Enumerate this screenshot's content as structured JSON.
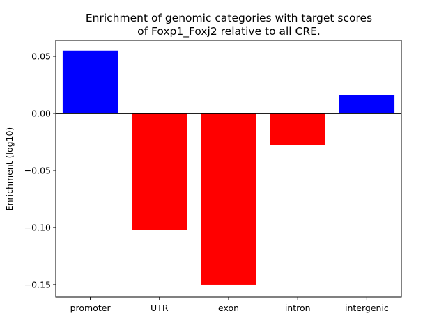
{
  "chart_data": {
    "type": "bar",
    "title_line1": "Enrichment of genomic categories with target scores",
    "title_line2": "of Foxp1_Foxj2 relative to all CRE.",
    "xlabel": "",
    "ylabel": "Enrichment (log10)",
    "categories": [
      "promoter",
      "UTR",
      "exon",
      "intron",
      "intergenic"
    ],
    "values": [
      0.055,
      -0.102,
      -0.15,
      -0.028,
      0.016
    ],
    "ylim": [
      -0.161,
      0.064
    ],
    "yticks": [
      0.05,
      0.0,
      -0.05,
      -0.1,
      -0.15
    ],
    "ytick_labels": [
      "0.05",
      "0.00",
      "−0.05",
      "−0.10",
      "−0.15"
    ],
    "colors": {
      "positive": "#0000ff",
      "negative": "#ff0000",
      "axis": "#000000"
    },
    "grid": false,
    "zero_line": true
  }
}
